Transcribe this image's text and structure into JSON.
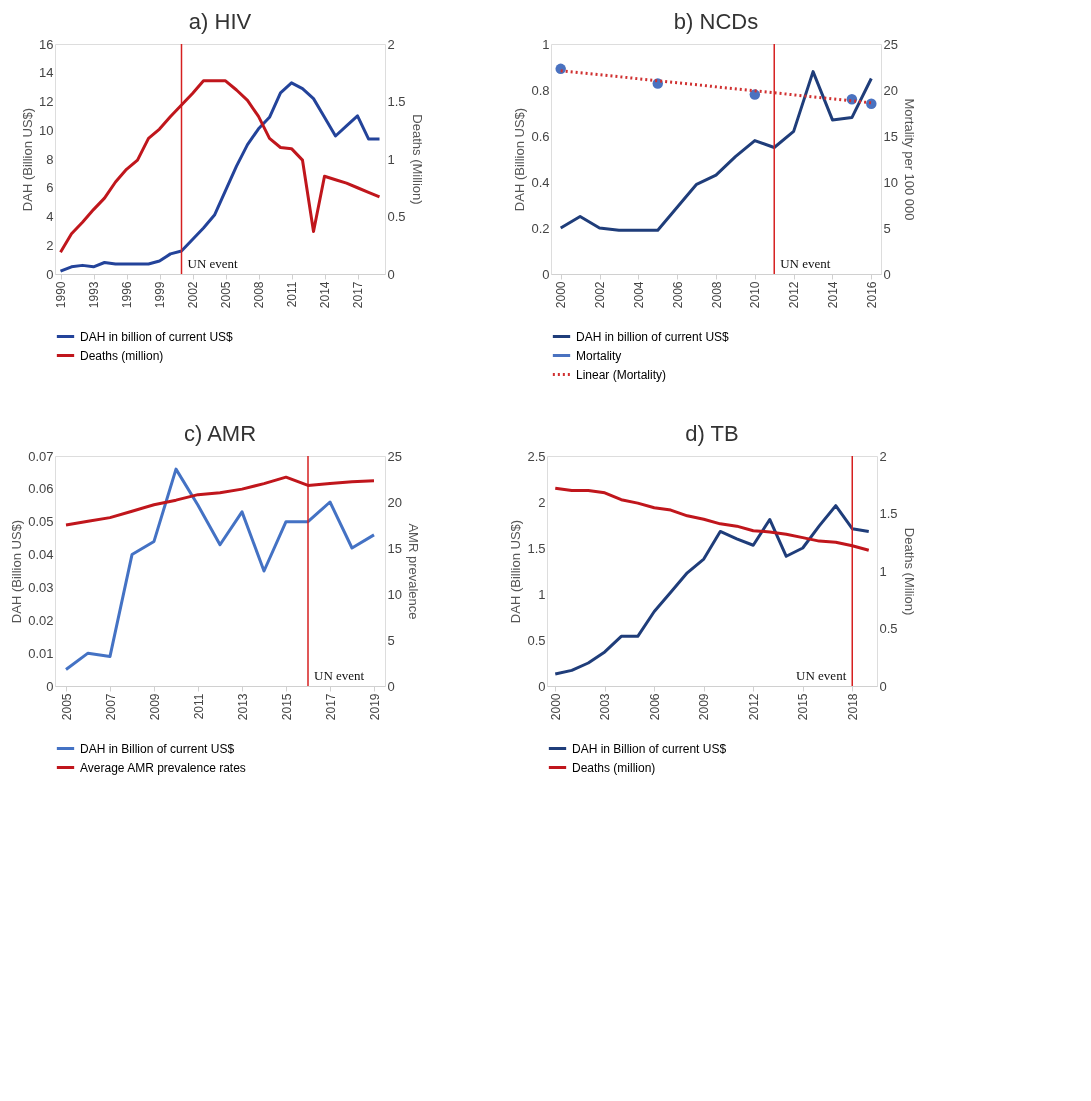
{
  "chart_data": [
    {
      "type": "line",
      "line_style": "solid",
      "title": "a) HIV",
      "ylabel": "DAH (Billion US$)",
      "y2label": "Deaths (Million)",
      "legend": "bottom",
      "grid": false,
      "x": [
        1990,
        1991,
        1992,
        1993,
        1994,
        1995,
        1996,
        1997,
        1998,
        1999,
        2000,
        2001,
        2002,
        2003,
        2004,
        2005,
        2006,
        2007,
        2008,
        2009,
        2010,
        2011,
        2012,
        2013,
        2014,
        2015,
        2016,
        2017,
        2018,
        2019
      ],
      "xlim": [
        1989.5,
        2019.5
      ],
      "xticks": [
        1990,
        1993,
        1996,
        1999,
        2002,
        2005,
        2008,
        2011,
        2014,
        2017
      ],
      "ylim": [
        0,
        16
      ],
      "yticks": [
        0,
        2,
        4,
        6,
        8,
        10,
        12,
        14,
        16
      ],
      "y2lim": [
        0,
        2
      ],
      "y2ticks": [
        0,
        0.5,
        1,
        1.5,
        2
      ],
      "series": [
        {
          "name": "DAH in billion of current US$",
          "color": "#23439a",
          "values": [
            0.2,
            0.5,
            0.6,
            0.5,
            0.8,
            0.7,
            0.7,
            0.7,
            0.7,
            0.9,
            1.4,
            1.6,
            2.4,
            3.2,
            4.1,
            5.8,
            7.5,
            9.0,
            10.1,
            10.9,
            12.6,
            13.3,
            12.9,
            12.2,
            10.9,
            9.6,
            10.3,
            11.0,
            9.4,
            9.4
          ]
        },
        {
          "name": "Deaths (million)",
          "color": "#c0161c",
          "axis": "y2",
          "values": [
            0.19,
            0.35,
            0.45,
            0.56,
            0.66,
            0.8,
            0.91,
            0.99,
            1.18,
            1.26,
            1.37,
            1.47,
            1.57,
            1.68,
            1.68,
            1.68,
            1.6,
            1.51,
            1.37,
            1.18,
            1.1,
            1.09,
            0.99,
            0.37,
            0.85,
            0.82,
            0.79,
            0.75,
            0.71,
            0.67
          ]
        }
      ],
      "ref_lines": [
        {
          "axis": "x",
          "value": 2001,
          "label": "UN event",
          "color": "#d62020"
        }
      ]
    },
    {
      "type": "line",
      "line_style": "solid",
      "title": "b) NCDs",
      "ylabel": "DAH (Billion US$)",
      "y2label": "Mortality per 100 000",
      "legend": "bottom",
      "grid": false,
      "x": [
        2000,
        2001,
        2002,
        2003,
        2004,
        2005,
        2006,
        2007,
        2008,
        2009,
        2010,
        2011,
        2012,
        2013,
        2014,
        2015,
        2016
      ],
      "xlim": [
        1999.5,
        2016.5
      ],
      "xticks": [
        2000,
        2002,
        2004,
        2006,
        2008,
        2010,
        2012,
        2014,
        2016
      ],
      "ylim": [
        0,
        1
      ],
      "yticks": [
        0,
        0.2,
        0.4,
        0.6,
        0.8,
        1
      ],
      "y2lim": [
        0,
        25
      ],
      "y2ticks": [
        0,
        5,
        10,
        15,
        20,
        25
      ],
      "series": [
        {
          "name": "DAH in billion of current US$",
          "color": "#1f3d7a",
          "values": [
            0.2,
            0.25,
            0.2,
            0.19,
            0.19,
            0.19,
            0.29,
            0.39,
            0.43,
            0.51,
            0.58,
            0.55,
            0.62,
            0.88,
            0.67,
            0.68,
            0.85
          ]
        },
        {
          "name": "Mortality",
          "color": "#4a72c0",
          "type": "scatter",
          "marker": "circle",
          "axis": "y2",
          "x": [
            2000,
            2005,
            2010,
            2015,
            2016
          ],
          "values": [
            22.3,
            20.7,
            19.5,
            19.0,
            18.5
          ]
        },
        {
          "name": "Linear (Mortality)",
          "color": "#d03030",
          "type": "line",
          "line_style": "dotted",
          "axis": "y2",
          "x": [
            2000,
            2016
          ],
          "values": [
            22.1,
            18.6
          ]
        }
      ],
      "ref_lines": [
        {
          "axis": "x",
          "value": 2011,
          "label": "UN event",
          "color": "#d62020"
        }
      ]
    },
    {
      "type": "line",
      "line_style": "solid",
      "title": "c) AMR",
      "ylabel": "DAH (Billion US$)",
      "y2label": "AMR prevalence",
      "legend": "bottom",
      "grid": false,
      "x": [
        2005,
        2006,
        2007,
        2008,
        2009,
        2010,
        2011,
        2012,
        2013,
        2014,
        2015,
        2016,
        2017,
        2018,
        2019
      ],
      "xlim": [
        2004.5,
        2019.5
      ],
      "xticks": [
        2005,
        2007,
        2009,
        2011,
        2013,
        2015,
        2017,
        2019
      ],
      "ylim": [
        0,
        0.07
      ],
      "yticks": [
        0,
        0.01,
        0.02,
        0.03,
        0.04,
        0.05,
        0.06,
        0.07
      ],
      "y2lim": [
        0,
        25
      ],
      "y2ticks": [
        0,
        5,
        10,
        15,
        20,
        25
      ],
      "series": [
        {
          "name": "DAH in Billion of current US$",
          "color": "#4472c4",
          "values": [
            0.005,
            0.01,
            0.009,
            0.04,
            0.044,
            0.066,
            0.055,
            0.043,
            0.053,
            0.035,
            0.05,
            0.05,
            0.056,
            0.042,
            0.046
          ]
        },
        {
          "name": "Average AMR prevalence rates",
          "color": "#c0161c",
          "axis": "y2",
          "values": [
            17.5,
            17.9,
            18.3,
            19.0,
            19.7,
            20.2,
            20.8,
            21.0,
            21.4,
            22.0,
            22.7,
            21.8,
            22.0,
            22.2,
            22.3
          ]
        }
      ],
      "ref_lines": [
        {
          "axis": "x",
          "value": 2016,
          "label": "UN event",
          "color": "#d62020"
        }
      ]
    },
    {
      "type": "line",
      "line_style": "solid",
      "title": "d) TB",
      "ylabel": "DAH (Billion US$)",
      "y2label": "Deaths (Milion)",
      "legend": "bottom",
      "grid": false,
      "x": [
        2000,
        2001,
        2002,
        2003,
        2004,
        2005,
        2006,
        2007,
        2008,
        2009,
        2010,
        2011,
        2012,
        2013,
        2014,
        2015,
        2016,
        2017,
        2018,
        2019
      ],
      "xlim": [
        1999.5,
        2019.5
      ],
      "xticks": [
        2000,
        2003,
        2006,
        2009,
        2012,
        2015,
        2018
      ],
      "ylim": [
        0,
        2.5
      ],
      "yticks": [
        0,
        0.5,
        1,
        1.5,
        2,
        2.5
      ],
      "y2lim": [
        0,
        2
      ],
      "y2ticks": [
        0,
        0.5,
        1,
        1.5,
        2
      ],
      "series": [
        {
          "name": "DAH in Billion of current US$",
          "color": "#1f3d7a",
          "values": [
            0.13,
            0.17,
            0.25,
            0.37,
            0.54,
            0.54,
            0.81,
            1.02,
            1.23,
            1.38,
            1.68,
            1.6,
            1.53,
            1.81,
            1.41,
            1.5,
            1.74,
            1.96,
            1.71,
            1.68
          ]
        },
        {
          "name": "Deaths (million)",
          "color": "#c0161c",
          "axis": "y2",
          "values": [
            1.72,
            1.7,
            1.7,
            1.68,
            1.62,
            1.59,
            1.55,
            1.53,
            1.48,
            1.45,
            1.41,
            1.39,
            1.35,
            1.34,
            1.32,
            1.29,
            1.26,
            1.25,
            1.22,
            1.18
          ]
        }
      ],
      "ref_lines": [
        {
          "axis": "x",
          "value": 2018,
          "label": "UN event",
          "color": "#d62020"
        }
      ]
    }
  ]
}
